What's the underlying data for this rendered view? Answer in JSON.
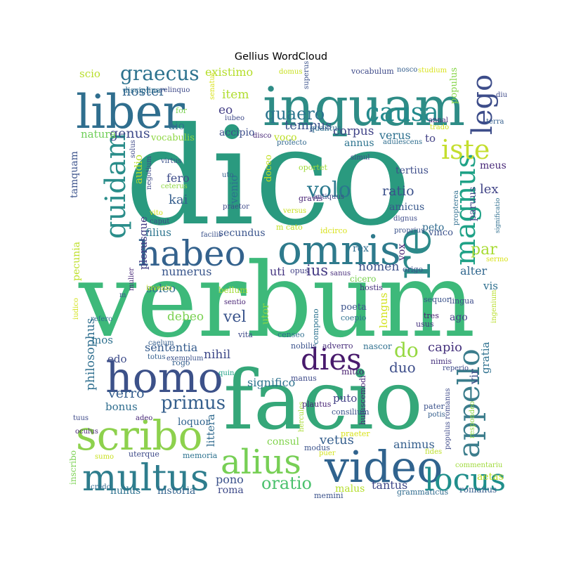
{
  "chart_data": {
    "type": "wordcloud",
    "title": "Gellius WordCloud",
    "palette": "viridis",
    "words": [
      {
        "text": "dico",
        "color": "#2a9a7f"
      },
      {
        "text": "verbum",
        "color": "#3db97a"
      },
      {
        "text": "facio",
        "color": "#35a779"
      },
      {
        "text": "inquam",
        "color": "#2e8c86"
      },
      {
        "text": "liber",
        "color": "#2f6e8e"
      },
      {
        "text": "omnis",
        "color": "#2e7a8c"
      },
      {
        "text": "homo",
        "color": "#3c5189"
      },
      {
        "text": "video",
        "color": "#30638e"
      },
      {
        "text": "scribo",
        "color": "#8dd14d"
      },
      {
        "text": "multus",
        "color": "#2e7d8d"
      },
      {
        "text": "alius",
        "color": "#77cf55"
      },
      {
        "text": "habeo",
        "color": "#34628d"
      },
      {
        "text": "re",
        "color": "#2d8a8a"
      },
      {
        "text": "quidam",
        "color": "#2a8d8a"
      },
      {
        "text": "magnus",
        "color": "#1fa287"
      },
      {
        "text": "appello",
        "color": "#3b7d8c"
      },
      {
        "text": "locus",
        "color": "#208f8c"
      },
      {
        "text": "causa",
        "color": "#238a8d"
      },
      {
        "text": "lego",
        "color": "#3d4d8a"
      },
      {
        "text": "iste",
        "color": "#c4de2e"
      },
      {
        "text": "dies",
        "color": "#481a6c"
      },
      {
        "text": "volo",
        "color": "#2a788e"
      },
      {
        "text": "graecus",
        "color": "#2c728e"
      },
      {
        "text": "quaero",
        "color": "#2b748e"
      },
      {
        "text": "oratio",
        "color": "#4ac16d"
      },
      {
        "text": "primus",
        "color": "#355f8d"
      },
      {
        "text": "noster",
        "color": "#32658e"
      },
      {
        "text": "tempus",
        "color": "#3a538b"
      },
      {
        "text": "genus",
        "color": "#3e4a89"
      },
      {
        "text": "corpus",
        "color": "#414487"
      },
      {
        "text": "ratio",
        "color": "#3b518b"
      },
      {
        "text": "verus",
        "color": "#2d708e"
      },
      {
        "text": "existimo",
        "color": "#b5de2b"
      },
      {
        "text": "item",
        "color": "#b0dd2f"
      },
      {
        "text": "eo",
        "color": "#433e85"
      },
      {
        "text": "aio",
        "color": "#2c728e"
      },
      {
        "text": "vocabulis",
        "color": "#8fd744"
      },
      {
        "text": "natura",
        "color": "#6ece58"
      },
      {
        "text": "scio",
        "color": "#b8de29"
      },
      {
        "text": "fero",
        "color": "#3e4c8a"
      },
      {
        "text": "kai",
        "color": "#355e8d"
      },
      {
        "text": "venio",
        "color": "#2c728e"
      },
      {
        "text": "plerusque",
        "color": "#433e85"
      },
      {
        "text": "filius",
        "color": "#2b748e"
      },
      {
        "text": "soleo",
        "color": "#2e6f8e"
      },
      {
        "text": "numerus",
        "color": "#39568c"
      },
      {
        "text": "secundus",
        "color": "#3a548c"
      },
      {
        "text": "bellum",
        "color": "#a2da37"
      },
      {
        "text": "debeo",
        "color": "#7ad151"
      },
      {
        "text": "vel",
        "color": "#3a548c"
      },
      {
        "text": "nihil",
        "color": "#3e4989"
      },
      {
        "text": "sententia",
        "color": "#365c8d"
      },
      {
        "text": "philosophus",
        "color": "#2e6e8e"
      },
      {
        "text": "mos",
        "color": "#2d708e"
      },
      {
        "text": "edo",
        "color": "#3e4c8a"
      },
      {
        "text": "verro",
        "color": "#355e8d"
      },
      {
        "text": "bonus",
        "color": "#2e6d8e"
      },
      {
        "text": "do",
        "color": "#95d840"
      },
      {
        "text": "duo",
        "color": "#3d4e8a"
      },
      {
        "text": "capio",
        "color": "#46337e"
      },
      {
        "text": "significo",
        "color": "#2c728e"
      },
      {
        "text": "puto",
        "color": "#424186"
      },
      {
        "text": "vetus",
        "color": "#355f8d"
      },
      {
        "text": "consul",
        "color": "#81d34d"
      },
      {
        "text": "animus",
        "color": "#355f8d"
      },
      {
        "text": "pono",
        "color": "#3b528b"
      },
      {
        "text": "roma",
        "color": "#3e4a89"
      },
      {
        "text": "nullus",
        "color": "#2d718e"
      },
      {
        "text": "historia",
        "color": "#33638d"
      },
      {
        "text": "tantus",
        "color": "#3f4788"
      },
      {
        "text": "malus",
        "color": "#b5de2b"
      },
      {
        "text": "nomen",
        "color": "#3c508b"
      },
      {
        "text": "uti",
        "color": "#453581"
      },
      {
        "text": "ius",
        "color": "#443983"
      },
      {
        "text": "vox",
        "color": "#482475"
      },
      {
        "text": "rex",
        "color": "#2f6c8e"
      },
      {
        "text": "par",
        "color": "#a8db34"
      },
      {
        "text": "alter",
        "color": "#31678e"
      },
      {
        "text": "vis",
        "color": "#2e6f8e"
      },
      {
        "text": "ago",
        "color": "#424086"
      },
      {
        "text": "lex",
        "color": "#414487"
      },
      {
        "text": "peto",
        "color": "#2f6b8e"
      },
      {
        "text": "paruus",
        "color": "#3f4889"
      },
      {
        "text": "to",
        "color": "#424186"
      },
      {
        "text": "annus",
        "color": "#2c738e"
      },
      {
        "text": "voco",
        "color": "#bddf26"
      },
      {
        "text": "longus",
        "color": "#d2e21b"
      },
      {
        "text": "gratia",
        "color": "#2d708e"
      },
      {
        "text": "vir",
        "color": "#3c4f8a"
      },
      {
        "text": "aetas",
        "color": "#c0df25"
      },
      {
        "text": "audio",
        "color": "#b5de2b"
      },
      {
        "text": "tertius",
        "color": "#3d4d8a"
      },
      {
        "text": "amicus",
        "color": "#38588c"
      },
      {
        "text": "tamquam",
        "color": "#3b528b"
      },
      {
        "text": "pecunia",
        "color": "#bddf26"
      },
      {
        "text": "meus",
        "color": "#482878"
      },
      {
        "text": "utor",
        "color": "#8bd646"
      },
      {
        "text": "littera",
        "color": "#306a8e"
      },
      {
        "text": "loquor",
        "color": "#32648e"
      },
      {
        "text": "accipio",
        "color": "#3c4f8a"
      },
      {
        "text": "doceo",
        "color": "#c2df23"
      },
      {
        "text": "populus",
        "color": "#86d549"
      },
      {
        "text": "poeta",
        "color": "#3b528b"
      },
      {
        "text": "memini",
        "color": "#3b528b"
      },
      {
        "text": "grammaticus",
        "color": "#2f6b8e"
      },
      {
        "text": "romanus",
        "color": "#355e8d"
      },
      {
        "text": "quantus",
        "color": "#2e6e8e"
      },
      {
        "text": "adulescens",
        "color": "#2e6d8e"
      },
      {
        "text": "profecto",
        "color": "#31688e"
      },
      {
        "text": "simul",
        "color": "#3e4a89"
      },
      {
        "text": "oportet",
        "color": "#9fda3a"
      },
      {
        "text": "gravis",
        "color": "#482475"
      },
      {
        "text": "antiquus",
        "color": "#414487"
      },
      {
        "text": "versus",
        "color": "#c8e020"
      },
      {
        "text": "dignus",
        "color": "#3e4c8a"
      },
      {
        "text": "proprius",
        "color": "#3b528b"
      },
      {
        "text": "vinco",
        "color": "#3b528b"
      },
      {
        "text": "m cato",
        "color": "#c2df23"
      },
      {
        "text": "idcirco",
        "color": "#d8e219"
      },
      {
        "text": "opus",
        "color": "#424086"
      },
      {
        "text": "sanus",
        "color": "#472d7b"
      },
      {
        "text": "cicero",
        "color": "#7ad151"
      },
      {
        "text": "origo",
        "color": "#3a538b"
      },
      {
        "text": "hostis",
        "color": "#46307e"
      },
      {
        "text": "sequor",
        "color": "#3b528b"
      },
      {
        "text": "lingua",
        "color": "#3e4c8a"
      },
      {
        "text": "tres",
        "color": "#481f70"
      },
      {
        "text": "usus",
        "color": "#46327e"
      },
      {
        "text": "ingenium",
        "color": "#b8de29"
      },
      {
        "text": "compono",
        "color": "#2c728e"
      },
      {
        "text": "coepio",
        "color": "#2d708e"
      },
      {
        "text": "censeo",
        "color": "#2e6e8e"
      },
      {
        "text": "sentio",
        "color": "#482475"
      },
      {
        "text": "rogo",
        "color": "#355f8d"
      },
      {
        "text": "vita",
        "color": "#3e4a89"
      },
      {
        "text": "nobilis",
        "color": "#3b528b"
      },
      {
        "text": "adverro",
        "color": "#472d7b"
      },
      {
        "text": "nascor",
        "color": "#2e6f8e"
      },
      {
        "text": "reperio",
        "color": "#3e4c8a"
      },
      {
        "text": "nimis",
        "color": "#46327e"
      },
      {
        "text": "manus",
        "color": "#3e4a89"
      },
      {
        "text": "mitto",
        "color": "#481f70"
      },
      {
        "text": "huiuscemodi",
        "color": "#482878"
      },
      {
        "text": "hercules",
        "color": "#a8db34"
      },
      {
        "text": "plautus",
        "color": "#482475"
      },
      {
        "text": "consilium",
        "color": "#3b528b"
      },
      {
        "text": "pater",
        "color": "#3b528b"
      },
      {
        "text": "potis",
        "color": "#355f8d"
      },
      {
        "text": "populus romanus",
        "color": "#3e4a89"
      },
      {
        "text": "respondeo",
        "color": "#8fd744"
      },
      {
        "text": "commentariu",
        "color": "#9fda3a"
      },
      {
        "text": "praeter",
        "color": "#d8e219"
      },
      {
        "text": "fides",
        "color": "#bddf26"
      },
      {
        "text": "puer",
        "color": "#d2e21b"
      },
      {
        "text": "modus",
        "color": "#3b528b"
      },
      {
        "text": "memoria",
        "color": "#2c728e"
      },
      {
        "text": "uterque",
        "color": "#3e4a89"
      },
      {
        "text": "credo",
        "color": "#306a8e"
      },
      {
        "text": "sumo",
        "color": "#c8e020"
      },
      {
        "text": "inscribo",
        "color": "#7ad151"
      },
      {
        "text": "oculus",
        "color": "#482878"
      },
      {
        "text": "tuus",
        "color": "#3e4a89"
      },
      {
        "text": "adeo",
        "color": "#482878"
      },
      {
        "text": "caelum",
        "color": "#355f8d"
      },
      {
        "text": "totus",
        "color": "#355f8d"
      },
      {
        "text": "exemplum",
        "color": "#3b528b"
      },
      {
        "text": "quin",
        "color": "#1fa187"
      },
      {
        "text": "refero",
        "color": "#2e6e8e"
      },
      {
        "text": "iudico",
        "color": "#d2e21b"
      },
      {
        "text": "m",
        "color": "#3b528b"
      },
      {
        "text": "mulier",
        "color": "#482878"
      },
      {
        "text": "invenio",
        "color": "#c8e020"
      },
      {
        "text": "facilis",
        "color": "#3b528b"
      },
      {
        "text": "caput",
        "color": "#3e4a89"
      },
      {
        "text": "vito",
        "color": "#d8e219"
      },
      {
        "text": "ceterus",
        "color": "#8fd744"
      },
      {
        "text": "virtus",
        "color": "#3b528b"
      },
      {
        "text": "negotium",
        "color": "#3e4a89"
      },
      {
        "text": "solus",
        "color": "#3e4a89"
      },
      {
        "text": "praetor",
        "color": "#3e4a89"
      },
      {
        "text": "uto",
        "color": "#355f8d"
      },
      {
        "text": "iubeo",
        "color": "#3e4a89"
      },
      {
        "text": "disco",
        "color": "#482878"
      },
      {
        "text": "senatus",
        "color": "#d8e219"
      },
      {
        "text": "domus",
        "color": "#c8e020"
      },
      {
        "text": "superus",
        "color": "#3b528b"
      },
      {
        "text": "disciplina",
        "color": "#2e6e8e"
      },
      {
        "text": "relinquo",
        "color": "#3e4a89"
      },
      {
        "text": "for",
        "color": "#7ad151"
      },
      {
        "text": "vocabulum",
        "color": "#3e4a89"
      },
      {
        "text": "nosco",
        "color": "#355f8d"
      },
      {
        "text": "studium",
        "color": "#d8e219"
      },
      {
        "text": "diu",
        "color": "#3e4a89"
      },
      {
        "text": "annal",
        "color": "#482878"
      },
      {
        "text": "trado",
        "color": "#d2e21b"
      },
      {
        "text": "terra",
        "color": "#355f8d"
      },
      {
        "text": "propterea",
        "color": "#2e6e8e"
      },
      {
        "text": "sermo",
        "color": "#d8e219"
      },
      {
        "text": "significatio",
        "color": "#2e6e8e"
      }
    ]
  }
}
